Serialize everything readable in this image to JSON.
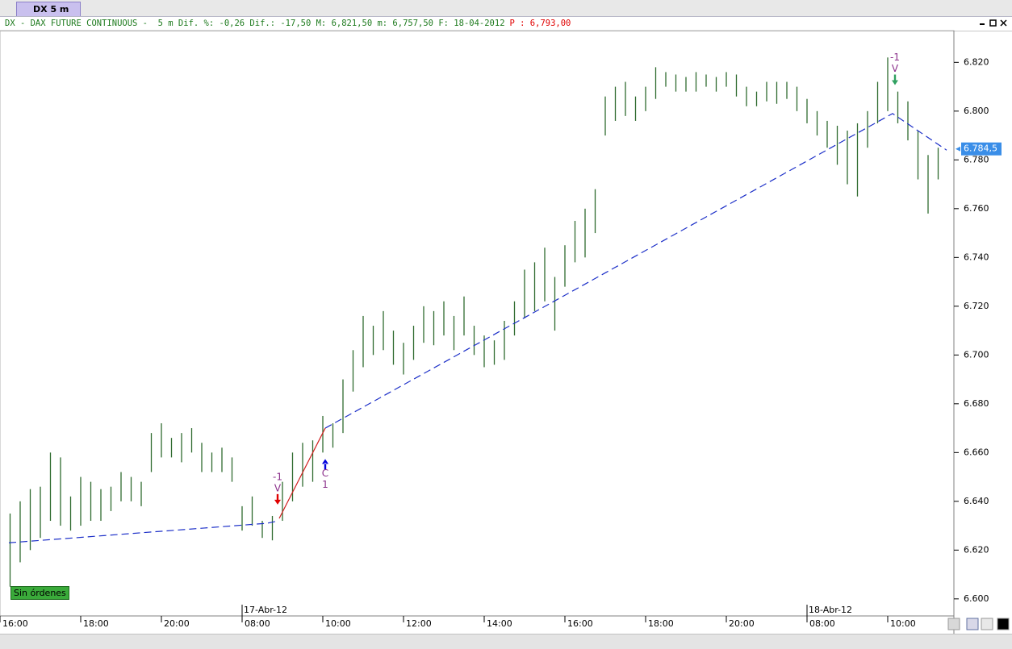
{
  "ui": {
    "tab": "DX 5 m",
    "header_text": "DX - DAX FUTURE CONTINUOUS -  5 m Dif. %: -0,26 Dif.: -17,50 M: 6,821,50 m: 6,757,50 F: 18-04-2012",
    "header_price": "P : 6,793,00",
    "status": "Sin órdenes"
  },
  "chart_data": {
    "type": "ohlc",
    "color": "#2f6b2f",
    "x": [
      0.25,
      0.5,
      0.75,
      1.0,
      1.25,
      1.5,
      1.75,
      2.0,
      2.25,
      2.5,
      2.75,
      3.0,
      3.25,
      3.5,
      3.75,
      4.0,
      4.25,
      4.5,
      4.75,
      5.0,
      5.25,
      5.5,
      5.75,
      6.0,
      6.25,
      6.5,
      6.75,
      7.0,
      7.25,
      7.5,
      7.75,
      8.0,
      8.25,
      8.5,
      8.75,
      9.0,
      9.25,
      9.5,
      9.75,
      10.0,
      10.25,
      10.5,
      10.75,
      11.0,
      11.25,
      11.5,
      11.75,
      12.0,
      12.25,
      12.5,
      12.75,
      13.0,
      13.25,
      13.5,
      13.75,
      14.0,
      14.25,
      14.5,
      14.75,
      15.0,
      15.25,
      15.5,
      15.75,
      16.0,
      16.25,
      16.5,
      16.75,
      17.0,
      17.25,
      17.5,
      17.75,
      18.0,
      18.25,
      18.5,
      18.75,
      19.0,
      19.25,
      19.5,
      19.75,
      20.0,
      20.25,
      20.5,
      20.75,
      21.0,
      21.25,
      21.5,
      21.75,
      22.0,
      22.25,
      22.5,
      22.75,
      23.0,
      23.25
    ],
    "high": [
      6635,
      6640,
      6645,
      6646,
      6660,
      6658,
      6642,
      6650,
      6648,
      6645,
      6646,
      6652,
      6650,
      6648,
      6668,
      6672,
      6666,
      6668,
      6670,
      6664,
      6660,
      6662,
      6658,
      6638,
      6642,
      6632,
      6634,
      6648,
      6660,
      6664,
      6665,
      6675,
      6672,
      6690,
      6702,
      6716,
      6712,
      6718,
      6710,
      6705,
      6712,
      6720,
      6718,
      6722,
      6716,
      6724,
      6712,
      6708,
      6706,
      6714,
      6722,
      6735,
      6738,
      6744,
      6732,
      6745,
      6755,
      6760,
      6768,
      6806,
      6810,
      6812,
      6806,
      6810,
      6818,
      6816,
      6815,
      6814,
      6816,
      6815,
      6814,
      6816,
      6815,
      6810,
      6808,
      6812,
      6812,
      6812,
      6810,
      6805,
      6800,
      6796,
      6794,
      6792,
      6795,
      6800,
      6812,
      6822,
      6808,
      6804,
      6792,
      6782,
      6785
    ],
    "low": [
      6605,
      6615,
      6620,
      6625,
      6632,
      6630,
      6628,
      6630,
      6632,
      6632,
      6636,
      6640,
      6640,
      6638,
      6652,
      6658,
      6658,
      6656,
      6660,
      6652,
      6652,
      6652,
      6648,
      6628,
      6630,
      6625,
      6624,
      6632,
      6640,
      6646,
      6648,
      6660,
      6662,
      6668,
      6685,
      6695,
      6700,
      6702,
      6696,
      6692,
      6698,
      6705,
      6704,
      6708,
      6702,
      6708,
      6700,
      6695,
      6696,
      6698,
      6708,
      6715,
      6718,
      6722,
      6710,
      6728,
      6738,
      6740,
      6750,
      6790,
      6796,
      6798,
      6796,
      6800,
      6805,
      6810,
      6808,
      6808,
      6808,
      6810,
      6808,
      6810,
      6806,
      6802,
      6802,
      6804,
      6803,
      6805,
      6800,
      6795,
      6790,
      6785,
      6778,
      6770,
      6765,
      6785,
      6795,
      6800,
      6795,
      6788,
      6772,
      6758,
      6772
    ],
    "lines": [
      {
        "color": "#1c2fc8",
        "dashed": true,
        "x": [
          0.22,
          6.62,
          6.9,
          null,
          8.06,
          22.12,
          23.46
        ],
        "values": [
          6623,
          6631,
          6632,
          null,
          6670,
          6799,
          6784
        ]
      },
      {
        "color": "#d02020",
        "dashed": false,
        "x": [
          6.92,
          8.06
        ],
        "values": [
          6633,
          6670
        ]
      }
    ],
    "signals": [
      {
        "x": 6.88,
        "value": 6640,
        "direction": "down",
        "color": "#e00000",
        "labels": [
          "-1",
          "V"
        ]
      },
      {
        "x": 8.06,
        "value": 6656,
        "direction": "up",
        "color": "#0000dd",
        "labels": [
          "C",
          "1"
        ]
      },
      {
        "x": 22.18,
        "value": 6812,
        "direction": "down",
        "color": "#30a060",
        "labels": [
          "-1",
          "V"
        ]
      }
    ],
    "last_price": {
      "value": 6784.5,
      "label": "6.784,5"
    },
    "xlim": [
      0,
      23.6
    ],
    "xticks": [
      {
        "value": 0,
        "label": "16:00"
      },
      {
        "value": 2,
        "label": "18:00"
      },
      {
        "value": 4,
        "label": "20:00"
      },
      {
        "value": 6,
        "label": "08:00"
      },
      {
        "value": 8,
        "label": "10:00"
      },
      {
        "value": 10,
        "label": "12:00"
      },
      {
        "value": 12,
        "label": "14:00"
      },
      {
        "value": 14,
        "label": "16:00"
      },
      {
        "value": 16,
        "label": "18:00"
      },
      {
        "value": 18,
        "label": "20:00"
      },
      {
        "value": 20,
        "label": "08:00"
      },
      {
        "value": 22,
        "label": "10:00"
      }
    ],
    "date_marks": [
      {
        "value": 6,
        "label": "17-Abr-12"
      },
      {
        "value": 20,
        "label": "18-Abr-12"
      }
    ],
    "ylim": [
      6593,
      6833
    ],
    "yticks": [
      {
        "value": 6600,
        "label": "6.600"
      },
      {
        "value": 6620,
        "label": "6.620"
      },
      {
        "value": 6640,
        "label": "6.640"
      },
      {
        "value": 6660,
        "label": "6.660"
      },
      {
        "value": 6680,
        "label": "6.680"
      },
      {
        "value": 6700,
        "label": "6.700"
      },
      {
        "value": 6720,
        "label": "6.720"
      },
      {
        "value": 6740,
        "label": "6.740"
      },
      {
        "value": 6760,
        "label": "6.760"
      },
      {
        "value": 6780,
        "label": "6.780"
      },
      {
        "value": 6800,
        "label": "6.800"
      },
      {
        "value": 6820,
        "label": "6.820"
      }
    ]
  }
}
